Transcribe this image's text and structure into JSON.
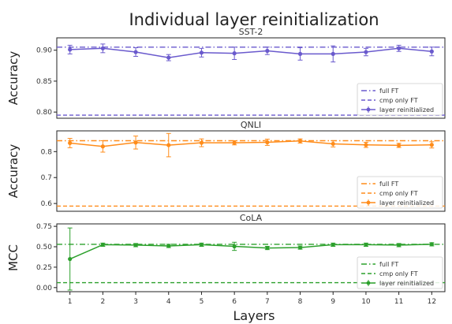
{
  "suptitle": "Individual layer reinitialization",
  "xlabel": "Layers",
  "chart_data": [
    {
      "type": "line",
      "title": "SST-2",
      "ylabel": "Accuracy",
      "x": [
        1,
        2,
        3,
        4,
        5,
        6,
        7,
        8,
        9,
        10,
        11,
        12
      ],
      "ylim": [
        0.79,
        0.92
      ],
      "yticks": [
        0.8,
        0.85,
        0.9
      ],
      "ytick_labels": [
        "0.80",
        "0.85",
        "0.90"
      ],
      "legend_position": "lower-right",
      "color": "#6a5acd",
      "full_ft": 0.905,
      "cmp_only_ft": 0.795,
      "series": [
        {
          "name": "layer reinitialized",
          "values": [
            0.901,
            0.903,
            0.897,
            0.888,
            0.896,
            0.895,
            0.899,
            0.894,
            0.894,
            0.897,
            0.903,
            0.898
          ],
          "errors": [
            0.007,
            0.007,
            0.007,
            0.005,
            0.007,
            0.01,
            0.006,
            0.01,
            0.013,
            0.006,
            0.005,
            0.007
          ]
        }
      ],
      "legend": [
        "full FT",
        "cmp only FT",
        "layer reinitialized"
      ]
    },
    {
      "type": "line",
      "title": "QNLI",
      "ylabel": "Accuracy",
      "x": [
        1,
        2,
        3,
        4,
        5,
        6,
        7,
        8,
        9,
        10,
        11,
        12
      ],
      "ylim": [
        0.57,
        0.88
      ],
      "yticks": [
        0.6,
        0.7,
        0.8
      ],
      "ytick_labels": [
        "0.6",
        "0.7",
        "0.8"
      ],
      "legend_position": "lower-right",
      "color": "#ff8c1a",
      "full_ft": 0.842,
      "cmp_only_ft": 0.59,
      "series": [
        {
          "name": "layer reinitialized",
          "values": [
            0.833,
            0.82,
            0.835,
            0.825,
            0.834,
            0.834,
            0.836,
            0.841,
            0.83,
            0.826,
            0.824,
            0.826
          ],
          "errors": [
            0.018,
            0.022,
            0.025,
            0.045,
            0.015,
            0.008,
            0.012,
            0.008,
            0.012,
            0.01,
            0.008,
            0.012
          ]
        }
      ],
      "legend": [
        "full FT",
        "cmp only FT",
        "layer reinitialized"
      ]
    },
    {
      "type": "line",
      "title": "CoLA",
      "ylabel": "MCC",
      "x": [
        1,
        2,
        3,
        4,
        5,
        6,
        7,
        8,
        9,
        10,
        11,
        12
      ],
      "ylim": [
        -0.05,
        0.78
      ],
      "yticks": [
        0.0,
        0.25,
        0.5,
        0.75
      ],
      "ytick_labels": [
        "0.00",
        "0.25",
        "0.50",
        "0.75"
      ],
      "legend_position": "lower-right",
      "color": "#2ca02c",
      "full_ft": 0.53,
      "cmp_only_ft": 0.06,
      "series": [
        {
          "name": "layer reinitialized",
          "values": [
            0.35,
            0.525,
            0.52,
            0.51,
            0.525,
            0.505,
            0.485,
            0.49,
            0.525,
            0.525,
            0.52,
            0.53
          ],
          "errors": [
            0.38,
            0.02,
            0.02,
            0.02,
            0.02,
            0.05,
            0.02,
            0.02,
            0.02,
            0.02,
            0.02,
            0.02
          ]
        }
      ],
      "legend": [
        "full FT",
        "cmp only FT",
        "layer reinitialized"
      ]
    }
  ]
}
